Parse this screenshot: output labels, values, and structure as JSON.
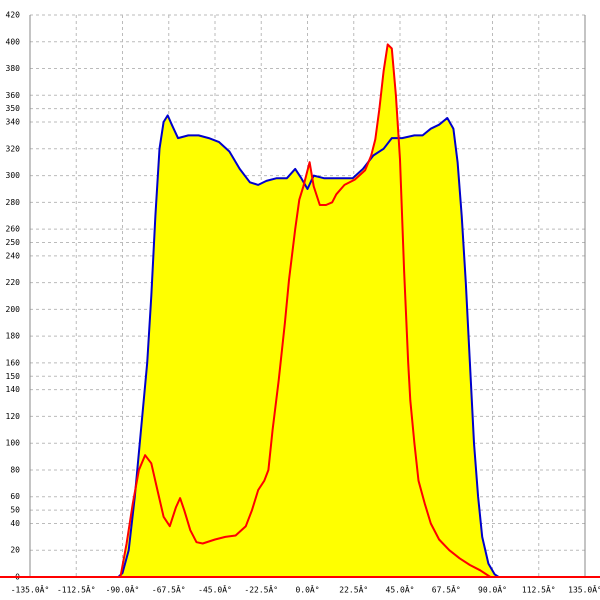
{
  "chart_data": {
    "type": "area",
    "xlim": [
      -135,
      135
    ],
    "xticks": [
      {
        "value": -135,
        "label": "-135.0Â°"
      },
      {
        "value": -112.5,
        "label": "-112.5Â°"
      },
      {
        "value": -90,
        "label": "-90.0Â°"
      },
      {
        "value": -67.5,
        "label": "-67.5Â°"
      },
      {
        "value": -45,
        "label": "-45.0Â°"
      },
      {
        "value": -22.5,
        "label": "-22.5Â°"
      },
      {
        "value": 0,
        "label": "0.0Â°"
      },
      {
        "value": 22.5,
        "label": "22.5Â°"
      },
      {
        "value": 45,
        "label": "45.0Â°"
      },
      {
        "value": 67.5,
        "label": "67.5Â°"
      },
      {
        "value": 90,
        "label": "90.0Â°"
      },
      {
        "value": 112.5,
        "label": "112.5Â°"
      },
      {
        "value": 135,
        "label": "135.0Â°"
      }
    ],
    "ylim": [
      0,
      420
    ],
    "yticks": [
      0,
      20,
      40,
      50,
      60,
      80,
      100,
      120,
      140,
      150,
      160,
      180,
      200,
      220,
      240,
      250,
      260,
      280,
      300,
      320,
      340,
      350,
      360,
      380,
      400,
      420
    ],
    "grid": true,
    "fill_color": "#ffff00",
    "axis_color": "#ff0000",
    "series": [
      {
        "color": "#0000cc",
        "x": [
          -92,
          -90,
          -87,
          -84,
          -81,
          -78,
          -76,
          -74,
          -72,
          -70,
          -68,
          -66,
          -63,
          -58,
          -53,
          -48,
          -43,
          -38,
          -33,
          -28,
          -24,
          -20,
          -15,
          -10,
          -6,
          -3,
          0,
          3,
          8,
          13,
          18,
          22,
          27,
          32,
          37,
          41,
          46,
          52,
          56,
          60,
          64,
          68,
          71,
          73,
          75,
          77,
          79,
          81,
          83,
          85,
          88,
          91,
          93
        ],
        "values": [
          0,
          3,
          20,
          60,
          110,
          160,
          210,
          270,
          320,
          340,
          345,
          338,
          328,
          330,
          330,
          328,
          325,
          318,
          305,
          295,
          293,
          296,
          298,
          298,
          305,
          298,
          290,
          300,
          298,
          298,
          298,
          298,
          305,
          315,
          320,
          328,
          328,
          330,
          330,
          335,
          338,
          343,
          335,
          310,
          270,
          220,
          160,
          100,
          60,
          30,
          10,
          2,
          0
        ]
      },
      {
        "color": "#ff0000",
        "x": [
          -91,
          -88,
          -85,
          -82,
          -79,
          -76,
          -73,
          -70,
          -67,
          -64,
          -62,
          -60,
          -57,
          -54,
          -51,
          -45,
          -40,
          -35,
          -30,
          -27,
          -24,
          -21,
          -19,
          -17,
          -14,
          -11,
          -9,
          -6,
          -4,
          -2,
          1,
          3,
          6,
          9,
          12,
          14,
          18,
          23,
          28,
          31,
          33,
          35,
          37,
          39,
          41,
          43,
          45,
          47,
          49,
          50,
          52,
          54,
          57,
          60,
          64,
          69,
          74,
          79,
          84,
          89
        ],
        "values": [
          0,
          25,
          55,
          80,
          91,
          85,
          65,
          45,
          38,
          52,
          59,
          50,
          35,
          26,
          25,
          28,
          30,
          31,
          38,
          50,
          65,
          72,
          80,
          110,
          147,
          190,
          222,
          260,
          282,
          292,
          310,
          292,
          278,
          278,
          280,
          286,
          293,
          297,
          304,
          315,
          327,
          350,
          378,
          398,
          395,
          360,
          312,
          229,
          160,
          132,
          100,
          72,
          55,
          40,
          28,
          20,
          14,
          9,
          5,
          0
        ]
      }
    ]
  }
}
